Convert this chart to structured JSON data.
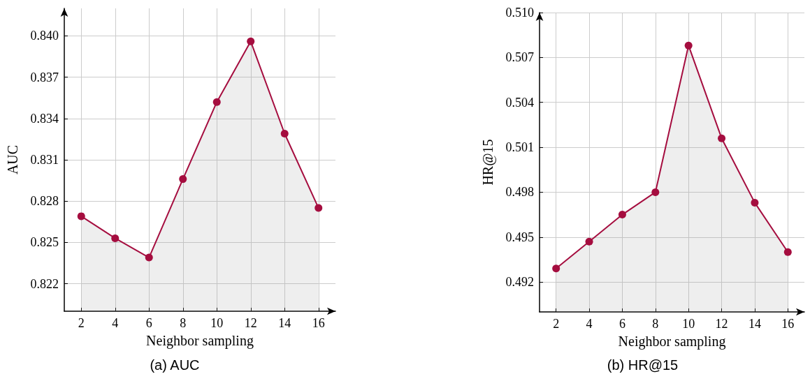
{
  "chart_data": [
    {
      "type": "area",
      "title": "(a) AUC",
      "xlabel": "Neighbor sampling",
      "ylabel": "AUC",
      "x": [
        2,
        4,
        6,
        8,
        10,
        12,
        14,
        16
      ],
      "series": [
        {
          "color": "#a50d3f",
          "values": [
            0.8269,
            0.8253,
            0.8239,
            0.8296,
            0.8352,
            0.8396,
            0.8329,
            0.8275
          ]
        }
      ],
      "xlim": [
        1,
        17
      ],
      "xticks": [
        2,
        4,
        6,
        8,
        10,
        12,
        14,
        16
      ],
      "ylim": [
        0.82,
        0.842
      ],
      "yticks": [
        0.822,
        0.825,
        0.828,
        0.831,
        0.834,
        0.837,
        {
          "value": 0.84,
          "label": "0.840"
        }
      ],
      "grid": true,
      "marker": "circle",
      "line_style": "solid"
    },
    {
      "type": "area",
      "title": "(b) HR@15",
      "xlabel": "Neighbor sampling",
      "ylabel": "HR@15",
      "x": [
        2,
        4,
        6,
        8,
        10,
        12,
        14,
        16
      ],
      "series": [
        {
          "color": "#a50d3f",
          "values": [
            0.4929,
            0.4947,
            0.4965,
            0.498,
            0.5078,
            0.5016,
            0.4973,
            0.494
          ]
        }
      ],
      "xlim": [
        1,
        17
      ],
      "xticks": [
        2,
        4,
        6,
        8,
        10,
        12,
        14,
        16
      ],
      "ylim": [
        0.49,
        0.51
      ],
      "yticks": [
        0.492,
        0.495,
        0.498,
        0.501,
        0.504,
        0.507,
        {
          "value": 0.51,
          "label": "0.510"
        }
      ],
      "grid": true,
      "marker": "circle",
      "line_style": "solid"
    }
  ]
}
